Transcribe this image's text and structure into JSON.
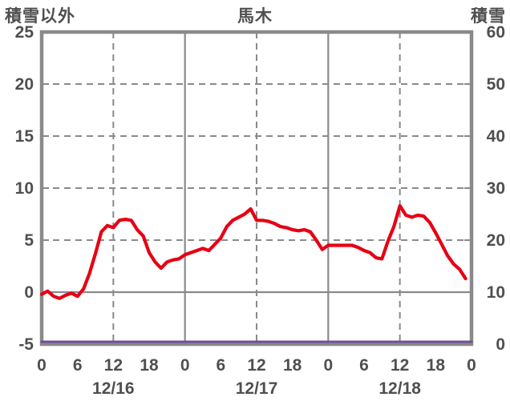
{
  "chart_data": {
    "type": "line",
    "title": "馬木",
    "left_axis": {
      "label": "積雪以外",
      "min": -5,
      "max": 25,
      "ticks": [
        25,
        20,
        15,
        10,
        5,
        0,
        -5
      ]
    },
    "right_axis": {
      "label": "積雪",
      "min": 0,
      "max": 60,
      "ticks": [
        60,
        50,
        40,
        30,
        20,
        10,
        0
      ]
    },
    "x_axis": {
      "range_hours": [
        0,
        72
      ],
      "tick_hours": [
        0,
        6,
        12,
        18,
        24,
        30,
        36,
        42,
        48,
        54,
        60,
        66,
        72
      ],
      "tick_labels": [
        "0",
        "6",
        "12",
        "18",
        "0",
        "6",
        "12",
        "18",
        "0",
        "6",
        "12",
        "18",
        "0"
      ],
      "day_labels": [
        "12/16",
        "12/17",
        "12/18"
      ],
      "day_center_hours": [
        12,
        36,
        60
      ]
    },
    "grid": {
      "horizontal_dashed_values": [
        20,
        15,
        10,
        5
      ],
      "horizontal_solid_values": [
        0
      ],
      "vertical_solid_hours": [
        24,
        48
      ],
      "vertical_dashed_hours": [
        12,
        36,
        60
      ]
    },
    "series": [
      {
        "name": "積雪以外",
        "axis": "left",
        "color": "#e60014",
        "start_hour": 0,
        "interval_hours": 1,
        "values": [
          -0.2,
          0.1,
          -0.4,
          -0.6,
          -0.3,
          -0.1,
          -0.4,
          0.3,
          1.8,
          3.7,
          5.8,
          6.4,
          6.2,
          6.9,
          7.0,
          6.9,
          6.0,
          5.4,
          3.8,
          2.9,
          2.3,
          2.9,
          3.1,
          3.2,
          3.6,
          3.8,
          4.0,
          4.2,
          4.0,
          4.6,
          5.2,
          6.3,
          6.9,
          7.2,
          7.5,
          8.0,
          6.9,
          6.9,
          6.8,
          6.6,
          6.3,
          6.2,
          6.0,
          5.9,
          6.0,
          5.8,
          5.0,
          4.1,
          4.5,
          4.5,
          4.5,
          4.5,
          4.5,
          4.3,
          4.0,
          3.8,
          3.3,
          3.2,
          4.9,
          6.3,
          8.3,
          7.4,
          7.2,
          7.4,
          7.3,
          6.7,
          5.7,
          4.6,
          3.5,
          2.7,
          2.2,
          1.3
        ]
      },
      {
        "name": "積雪",
        "axis": "right",
        "color": "#6f4f9f",
        "x_hours": [
          0,
          72
        ],
        "values": [
          0,
          0
        ]
      }
    ],
    "colors": {
      "grid": "#8a8a8a",
      "text": "#4f4f4f",
      "background": "#ffffff"
    }
  }
}
